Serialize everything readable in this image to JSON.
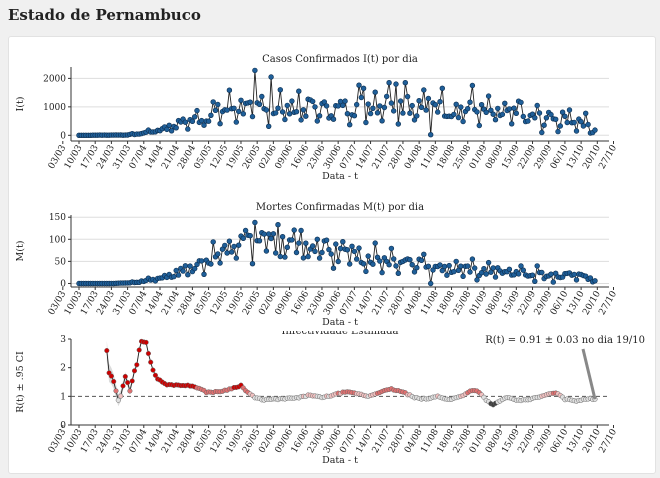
{
  "page": {
    "title": "Estado de Pernambuco"
  },
  "chart_data": [
    {
      "type": "line",
      "title": "Casos Confirmados I(t) por dia",
      "xlabel": "Data - t",
      "ylabel": "I(t)",
      "ylim": [
        -200,
        2400
      ],
      "yticks": [
        0,
        1000,
        2000
      ],
      "grid": true,
      "x_start": "10/03",
      "x_end": "19/10",
      "xticks": [
        "03/03",
        "10/03",
        "17/03",
        "24/03",
        "31/03",
        "07/04",
        "14/04",
        "21/04",
        "28/04",
        "05/05",
        "12/05",
        "19/05",
        "26/05",
        "02/06",
        "09/06",
        "16/06",
        "23/06",
        "30/06",
        "07/07",
        "14/07",
        "21/07",
        "28/07",
        "04/08",
        "11/08",
        "18/08",
        "25/08",
        "01/09",
        "08/09",
        "15/09",
        "22/09",
        "29/09",
        "06/10",
        "13/10",
        "20/10",
        "27/10"
      ],
      "anchors": [
        [
          0,
          0
        ],
        [
          10,
          5
        ],
        [
          20,
          10
        ],
        [
          25,
          45
        ],
        [
          30,
          120
        ],
        [
          35,
          200
        ],
        [
          40,
          320
        ],
        [
          45,
          450
        ],
        [
          50,
          550
        ],
        [
          55,
          700
        ],
        [
          60,
          820
        ],
        [
          65,
          950
        ],
        [
          70,
          1050
        ],
        [
          75,
          900
        ],
        [
          80,
          850
        ],
        [
          90,
          900
        ],
        [
          100,
          950
        ],
        [
          110,
          900
        ],
        [
          120,
          1050
        ],
        [
          130,
          1150
        ],
        [
          140,
          1100
        ],
        [
          150,
          1000
        ],
        [
          160,
          950
        ],
        [
          170,
          900
        ],
        [
          180,
          750
        ],
        [
          190,
          700
        ],
        [
          200,
          650
        ],
        [
          210,
          600
        ],
        [
          217,
          550
        ],
        [
          223,
          200
        ]
      ],
      "spikes": {
        "76": 2280,
        "83": 2050,
        "87": 1600,
        "95": 1550,
        "123": 1650,
        "134": 1850,
        "137": 1800,
        "141": 1850,
        "157": 1650,
        "170": 1750,
        "190": 1200
      },
      "dips": {
        "152": 20,
        "200": 100,
        "207": 130,
        "215": 150,
        "221": 80
      }
    },
    {
      "type": "line",
      "title": "Mortes Confirmadas M(t) por dia",
      "xlabel": "Data - t",
      "ylabel": "M(t)",
      "ylim": [
        -8,
        155
      ],
      "yticks": [
        0,
        50,
        100,
        150
      ],
      "grid": true,
      "x_start": "10/03",
      "x_end": "19/10",
      "xticks": [
        "03/03",
        "10/03",
        "17/03",
        "24/03",
        "31/03",
        "07/04",
        "14/04",
        "21/04",
        "28/04",
        "05/05",
        "12/05",
        "19/05",
        "26/05",
        "02/06",
        "09/06",
        "16/06",
        "23/06",
        "30/06",
        "07/07",
        "14/07",
        "21/07",
        "28/07",
        "04/08",
        "11/08",
        "18/08",
        "25/08",
        "01/09",
        "08/09",
        "15/09",
        "22/09",
        "29/09",
        "06/10",
        "13/10",
        "20/10",
        "27/10"
      ],
      "anchors": [
        [
          0,
          0
        ],
        [
          15,
          0
        ],
        [
          22,
          2
        ],
        [
          28,
          5
        ],
        [
          35,
          12
        ],
        [
          40,
          20
        ],
        [
          45,
          30
        ],
        [
          50,
          40
        ],
        [
          55,
          52
        ],
        [
          60,
          65
        ],
        [
          65,
          78
        ],
        [
          70,
          90
        ],
        [
          75,
          100
        ],
        [
          80,
          95
        ],
        [
          85,
          88
        ],
        [
          90,
          85
        ],
        [
          95,
          80
        ],
        [
          100,
          78
        ],
        [
          105,
          75
        ],
        [
          110,
          72
        ],
        [
          115,
          68
        ],
        [
          120,
          65
        ],
        [
          125,
          60
        ],
        [
          130,
          57
        ],
        [
          135,
          55
        ],
        [
          140,
          52
        ],
        [
          145,
          48
        ],
        [
          150,
          45
        ],
        [
          155,
          40
        ],
        [
          160,
          36
        ],
        [
          165,
          33
        ],
        [
          170,
          32
        ],
        [
          175,
          30
        ],
        [
          180,
          28
        ],
        [
          185,
          27
        ],
        [
          190,
          26
        ],
        [
          195,
          24
        ],
        [
          200,
          22
        ],
        [
          205,
          20
        ],
        [
          210,
          20
        ],
        [
          215,
          18
        ],
        [
          220,
          12
        ],
        [
          223,
          6
        ]
      ],
      "spikes": {
        "72": 120,
        "76": 138,
        "79": 115,
        "82": 112,
        "96": 120,
        "103": 100,
        "107": 98,
        "121": 80,
        "147": 55
      },
      "dips": {
        "152": 0,
        "172": 8,
        "197": 5,
        "205": 3
      }
    },
    {
      "type": "line",
      "title": "Infectividade Estimada",
      "xlabel": "Data - t",
      "ylabel": "R(t) ± .95 CI",
      "ylim": [
        0,
        3
      ],
      "yticks": [
        0,
        1,
        2,
        3
      ],
      "reference_line": 1,
      "x_start": "10/03",
      "x_end": "19/10",
      "xticks": [
        "03/03",
        "10/03",
        "17/03",
        "24/03",
        "31/03",
        "07/04",
        "14/04",
        "21/04",
        "28/04",
        "05/05",
        "12/05",
        "19/05",
        "26/05",
        "02/06",
        "09/06",
        "16/06",
        "23/06",
        "30/06",
        "07/07",
        "14/07",
        "21/07",
        "28/07",
        "04/08",
        "11/08",
        "18/08",
        "25/08",
        "01/09",
        "08/09",
        "15/09",
        "22/09",
        "29/09",
        "06/10",
        "13/10",
        "20/10",
        "27/10"
      ],
      "annotation": "R(t) = 0.91 ± 0.03 no dia 19/10",
      "marker_colors": {
        "high": "#cc0000",
        "mid": "#e07070",
        "near_high": "#f0c0c0",
        "near_low": "#e0e0e0",
        "low": "#404040"
      },
      "first_day": 12,
      "anchors": [
        [
          12,
          2.6
        ],
        [
          13,
          1.8
        ],
        [
          14,
          1.7
        ],
        [
          15,
          1.5
        ],
        [
          16,
          1.2
        ],
        [
          17,
          0.85
        ],
        [
          18,
          1.0
        ],
        [
          20,
          1.7
        ],
        [
          21,
          1.5
        ],
        [
          22,
          1.2
        ],
        [
          24,
          1.9
        ],
        [
          25,
          2.1
        ],
        [
          26,
          2.6
        ],
        [
          27,
          2.9
        ],
        [
          29,
          2.9
        ],
        [
          30,
          2.5
        ],
        [
          31,
          2.2
        ],
        [
          32,
          1.9
        ],
        [
          34,
          1.6
        ],
        [
          36,
          1.5
        ],
        [
          38,
          1.4
        ],
        [
          42,
          1.4
        ],
        [
          46,
          1.38
        ],
        [
          50,
          1.35
        ],
        [
          55,
          1.15
        ],
        [
          60,
          1.15
        ],
        [
          65,
          1.25
        ],
        [
          70,
          1.38
        ],
        [
          72,
          1.2
        ],
        [
          76,
          0.95
        ],
        [
          80,
          0.88
        ],
        [
          90,
          0.92
        ],
        [
          95,
          0.95
        ],
        [
          100,
          1.05
        ],
        [
          105,
          0.95
        ],
        [
          110,
          1.05
        ],
        [
          115,
          1.15
        ],
        [
          120,
          1.1
        ],
        [
          125,
          1.0
        ],
        [
          130,
          1.15
        ],
        [
          135,
          1.25
        ],
        [
          140,
          1.15
        ],
        [
          145,
          0.95
        ],
        [
          150,
          0.9
        ],
        [
          155,
          1.0
        ],
        [
          160,
          0.88
        ],
        [
          165,
          1.0
        ],
        [
          170,
          1.22
        ],
        [
          173,
          1.15
        ],
        [
          176,
          0.85
        ],
        [
          179,
          0.7
        ],
        [
          182,
          0.85
        ],
        [
          185,
          0.95
        ],
        [
          190,
          0.85
        ],
        [
          195,
          0.9
        ],
        [
          200,
          1.0
        ],
        [
          205,
          1.12
        ],
        [
          208,
          1.05
        ],
        [
          210,
          0.9
        ],
        [
          215,
          0.85
        ],
        [
          220,
          0.91
        ],
        [
          223,
          0.91
        ]
      ]
    }
  ]
}
